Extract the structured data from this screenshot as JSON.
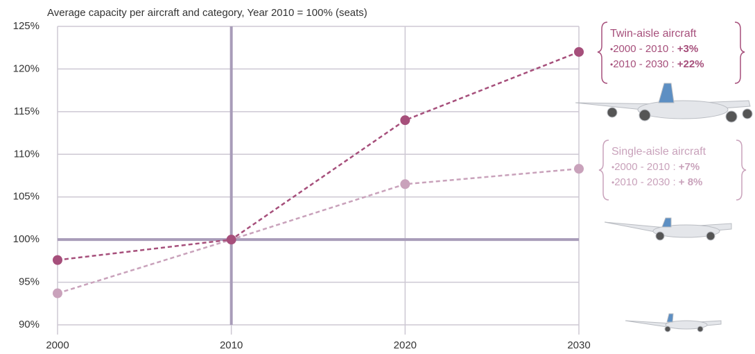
{
  "chart_data": {
    "type": "line",
    "title": "Average capacity per aircraft and category, Year 2010 = 100% (seats)",
    "x": [
      2000,
      2010,
      2020,
      2030
    ],
    "xlim": [
      2000,
      2030
    ],
    "xticks": [
      2000,
      2010,
      2020,
      2030
    ],
    "ylim": [
      90,
      125
    ],
    "yticks": [
      {
        "value": 90,
        "label": "90%"
      },
      {
        "value": 95,
        "label": "95%"
      },
      {
        "value": 100,
        "label": "100%"
      },
      {
        "value": 105,
        "label": "105%"
      },
      {
        "value": 110,
        "label": "110%"
      },
      {
        "value": 115,
        "label": "115%"
      },
      {
        "value": 120,
        "label": "120%"
      },
      {
        "value": 125,
        "label": "125%"
      }
    ],
    "grid": true,
    "reference_x": 2010,
    "reference_y": 100,
    "reference_color": "#a89cb9",
    "series": [
      {
        "name": "Twin-aisle aircraft",
        "color": "#a64f7b",
        "values": [
          97.6,
          100,
          114,
          122
        ]
      },
      {
        "name": "Single-aisle aircraft",
        "color": "#c9a2bb",
        "values": [
          93.7,
          100,
          106.5,
          108.3
        ]
      }
    ],
    "annotations": [
      {
        "title": "Twin-aisle aircraft",
        "items": [
          {
            "label": "2000 - 2010 :",
            "value": "+3%"
          },
          {
            "label": "2010 - 2030 :",
            "value": "+22%"
          }
        ]
      },
      {
        "title": "Single-aisle aircraft",
        "items": [
          {
            "label": "2000 - 2010 :",
            "value": "+7%"
          },
          {
            "label": "2010 - 2030 :",
            "value": "+ 8%"
          }
        ]
      }
    ]
  }
}
